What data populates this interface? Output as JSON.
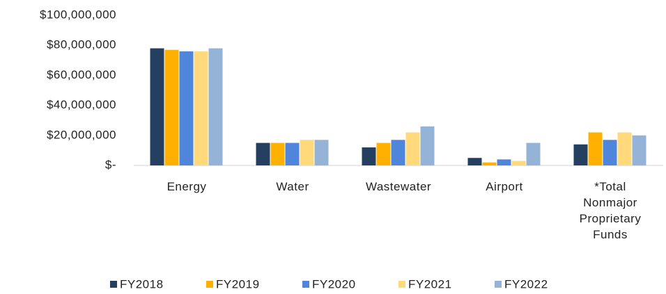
{
  "chart_data": {
    "type": "bar",
    "categories": [
      "Energy",
      "Water",
      "Wastewater",
      "Airport",
      "*Total Nonmajor Proprietary Funds"
    ],
    "series": [
      {
        "name": "FY2018",
        "color": "#243f60",
        "values": [
          78000000,
          15000000,
          12000000,
          5000000,
          14000000
        ]
      },
      {
        "name": "FY2019",
        "color": "#ffb000",
        "values": [
          77000000,
          15000000,
          15000000,
          2000000,
          22000000
        ]
      },
      {
        "name": "FY2020",
        "color": "#4f86dc",
        "values": [
          76000000,
          15000000,
          17000000,
          4000000,
          17000000
        ]
      },
      {
        "name": "FY2021",
        "color": "#ffd97a",
        "values": [
          76000000,
          17000000,
          22000000,
          3000000,
          22000000
        ]
      },
      {
        "name": "FY2022",
        "color": "#95b3d7",
        "values": [
          78000000,
          17000000,
          26000000,
          15000000,
          20000000
        ]
      }
    ],
    "ylim": [
      0,
      100000000
    ],
    "yticks": [
      {
        "value": 0,
        "label": "$-"
      },
      {
        "value": 20000000,
        "label": "$20,000,000"
      },
      {
        "value": 40000000,
        "label": "$40,000,000"
      },
      {
        "value": 60000000,
        "label": "$60,000,000"
      },
      {
        "value": 80000000,
        "label": "$80,000,000"
      },
      {
        "value": 100000000,
        "label": "$100,000,000"
      }
    ],
    "grid": false,
    "legend": "bottom"
  }
}
